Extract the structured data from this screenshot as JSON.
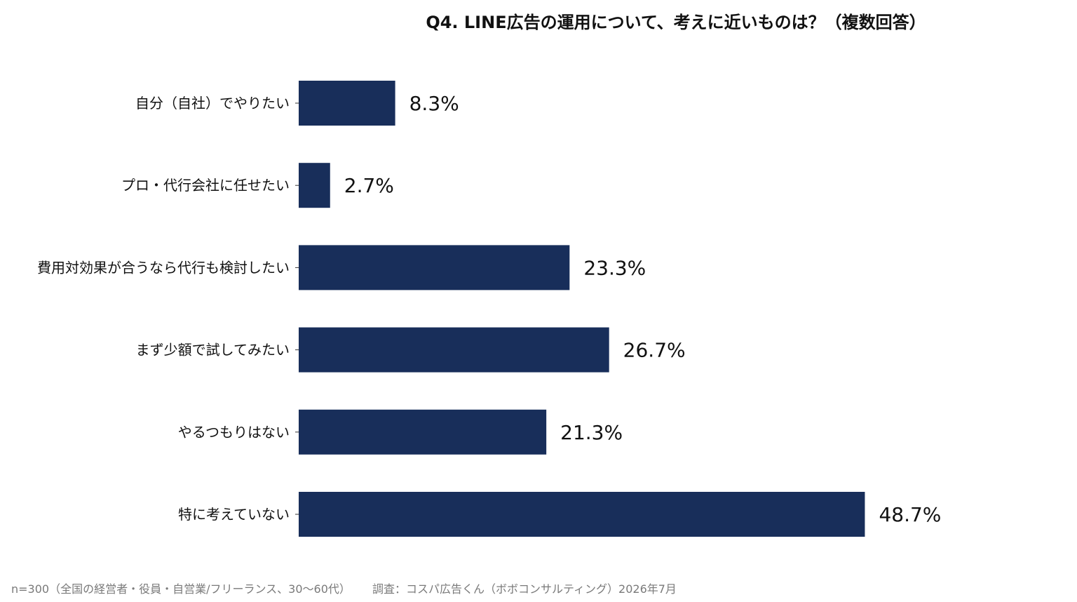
{
  "chart_data": {
    "type": "bar",
    "orientation": "horizontal",
    "title": "Q4. LINE広告の運用について、考えに近いものは？（複数回答）",
    "categories": [
      "自分（自社）でやりたい",
      "プロ・代行会社に任せたい",
      "費用対効果が合うなら代行も検討したい",
      "まず少額で試してみたい",
      "やるつもりはない",
      "特に考えていない"
    ],
    "values": [
      8.3,
      2.7,
      23.3,
      26.7,
      21.3,
      48.7
    ],
    "value_labels": [
      "8.3%",
      "2.7%",
      "23.3%",
      "26.7%",
      "21.3%",
      "48.7%"
    ],
    "xlim": [
      0,
      100
    ],
    "bar_color": "#182e5a",
    "grid": false,
    "legend": "none"
  },
  "footer": {
    "sample_note": "n=300（全国の経営者・役員・自営業/フリーランス、30〜60代）",
    "source_note": "調査：コスパ広告くん（ボボコンサルティング）2026年7月"
  }
}
